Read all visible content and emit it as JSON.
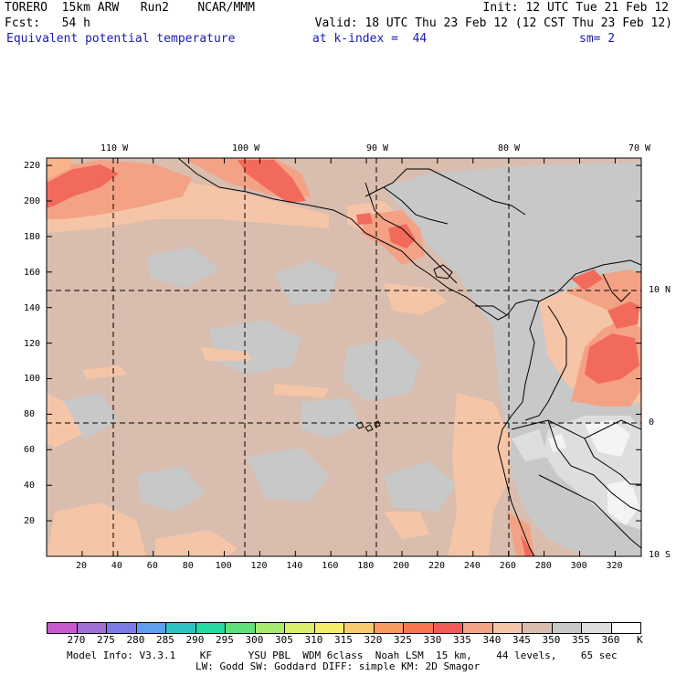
{
  "header": {
    "line1_left": "TORERO  15km ARW   Run2    NCAR/MMM",
    "line1_right": "Init: 12 UTC Tue 21 Feb 12",
    "line2_left": "Fcst:   54 h",
    "line2_right": "Valid: 18 UTC Thu 23 Feb 12 (12 CST Thu 23 Feb 12)",
    "field": "Equivalent potential temperature",
    "level": "at k-index =  44",
    "smoothing": "sm= 2"
  },
  "map": {
    "top_lon_labels": [
      "110 W",
      "100 W",
      "90 W",
      "80 W",
      "70 W"
    ],
    "right_lat_labels": [
      "10 N",
      "0",
      "10 S"
    ],
    "left_grid_labels": [
      "220",
      "200",
      "180",
      "160",
      "140",
      "120",
      "100",
      "80",
      "60",
      "40",
      "20"
    ],
    "bottom_grid_labels": [
      "20",
      "40",
      "60",
      "80",
      "100",
      "120",
      "140",
      "160",
      "180",
      "200",
      "220",
      "240",
      "260",
      "280",
      "300",
      "320"
    ],
    "colors": {
      "base": "#d9bdae",
      "grey": "#c8c8c8",
      "light_grey": "#dedede",
      "white": "#f4f4f4",
      "peach": "#f5c5a8",
      "salmon": "#f4a285",
      "red": "#f26a5c",
      "orange": "#f9b48a"
    }
  },
  "colorbar": {
    "unit": "K",
    "labels": [
      "270",
      "275",
      "280",
      "285",
      "290",
      "295",
      "300",
      "305",
      "310",
      "315",
      "320",
      "325",
      "330",
      "335",
      "340",
      "345",
      "350",
      "355",
      "360"
    ],
    "colors": [
      "#c75ad1",
      "#a06fd6",
      "#7b7be6",
      "#5f9ef0",
      "#2fc2c2",
      "#27d8a0",
      "#5fe07a",
      "#a6ea6f",
      "#d8ee6c",
      "#f5ec6c",
      "#f9cb70",
      "#f99b60",
      "#f6764f",
      "#f05a57",
      "#f4a285",
      "#f5c5a8",
      "#d9bdae",
      "#c8c8c8",
      "#dedede",
      "#ffffff"
    ]
  },
  "footer": {
    "line1": "Model Info: V3.3.1    KF      YSU PBL  WDM 6class  Noah LSM  15 km,    44 levels,    65 sec",
    "line2": "LW: Godd SW: Goddard DIFF: simple KM: 2D Smagor"
  }
}
